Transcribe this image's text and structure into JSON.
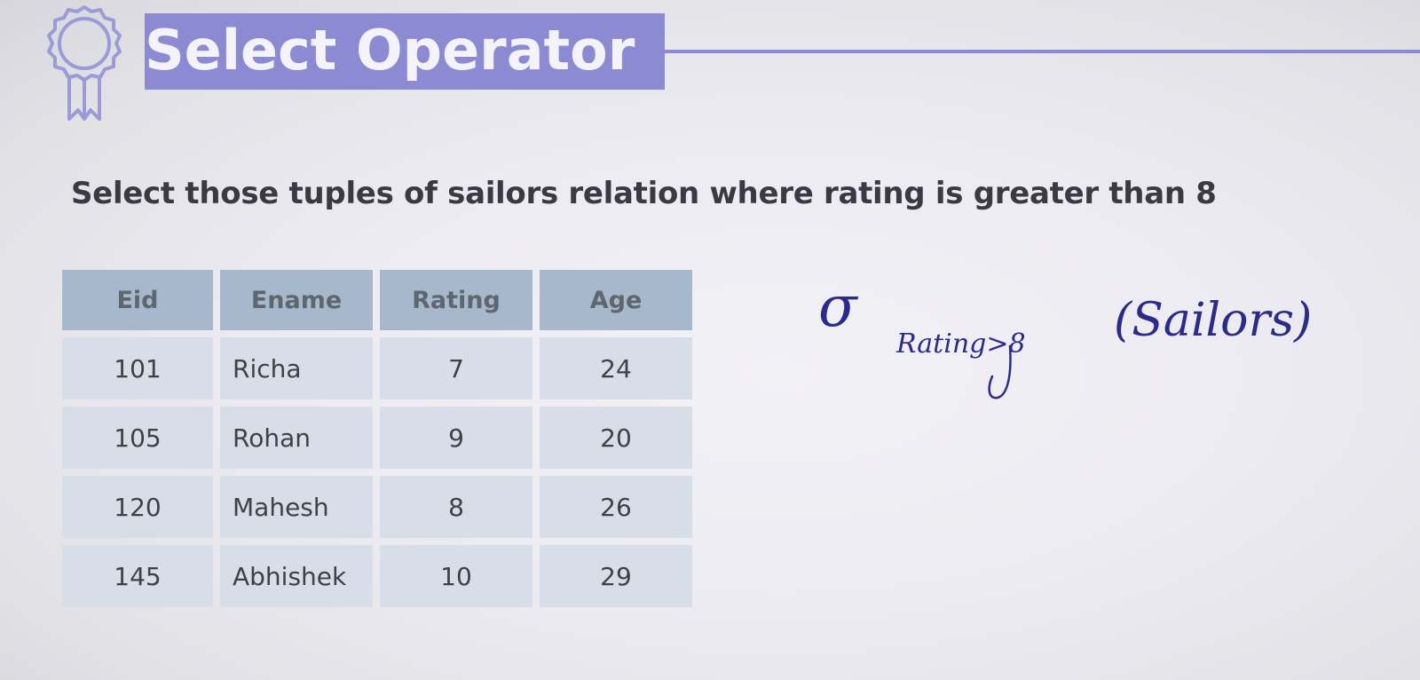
{
  "slide": {
    "title": "Select Operator",
    "question": "Select those tuples of sailors relation where rating is greater than 8"
  },
  "table": {
    "headers": [
      "Eid",
      "Ename",
      "Rating",
      "Age"
    ],
    "rows": [
      [
        "101",
        "Richa",
        "7",
        "24"
      ],
      [
        "105",
        "Rohan",
        "9",
        "20"
      ],
      [
        "120",
        "Mahesh",
        "8",
        "26"
      ],
      [
        "145",
        "Abhishek",
        "10",
        "29"
      ]
    ]
  },
  "handwritten_expression": {
    "operator": "σ",
    "subscript": "Rating>8",
    "relation": "(Sailors)"
  },
  "icons": {
    "badge": "award-ribbon-icon"
  },
  "colors": {
    "accent": "#8d8ad4",
    "table_header": "#a7b8cc",
    "table_cell": "#d8dee7",
    "ink": "#2b2b8c"
  }
}
